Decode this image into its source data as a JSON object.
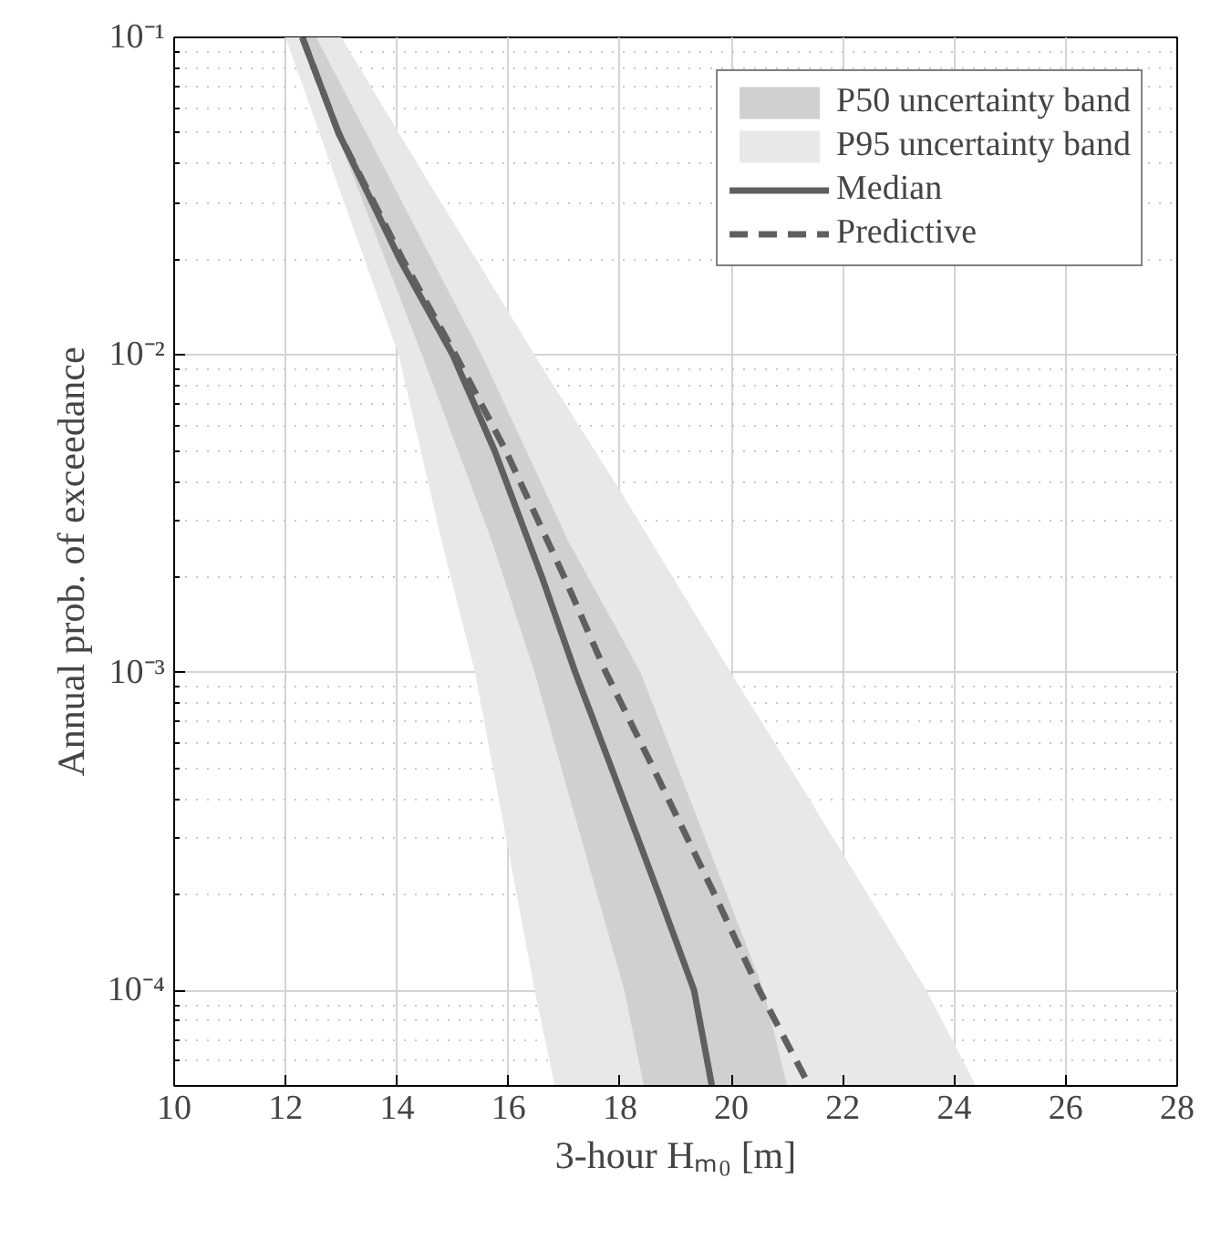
{
  "chart_data": {
    "type": "line",
    "xlabel": "3-hour Hₘ₀ [m]",
    "ylabel": "Annual prob. of exceedance",
    "log": "y",
    "xlim": [
      10,
      28
    ],
    "xticks": [
      10,
      12,
      14,
      16,
      18,
      20,
      22,
      24,
      26,
      28
    ],
    "ylim": [
      5e-05,
      0.1
    ],
    "yticks": [
      {
        "value": 0.0001,
        "label": "10⁻⁴"
      },
      {
        "value": 0.001,
        "label": "10⁻³"
      },
      {
        "value": 0.01,
        "label": "10⁻²"
      },
      {
        "value": 0.1,
        "label": "10⁻¹"
      }
    ],
    "grid": true,
    "legend": "top right",
    "series": [
      {
        "name": "P50 uncertainty band",
        "type": "area",
        "color": "#d0d0d0",
        "x": [
          12.25,
          12.55,
          13.5,
          14.45,
          15.52,
          15.7,
          16.47,
          17.07,
          18.08,
          18.37,
          18.43,
          19.5,
          20.58,
          21.0
        ],
        "values": [
          null,
          null,
          null,
          null,
          null,
          null,
          null,
          null,
          null,
          null,
          null,
          null,
          null,
          null
        ],
        "lower": [
          0.1,
          0.073,
          0.027,
          0.01,
          0.00316,
          0.0026,
          0.001,
          0.00042,
          0.0001,
          5.6e-05,
          5e-05,
          5e-05,
          5e-05,
          5e-05
        ],
        "upper": [
          0.1,
          0.1,
          0.0479,
          0.0229,
          0.01,
          0.00855,
          0.00438,
          0.0026,
          0.00124,
          0.001,
          0.00094,
          0.00031,
          0.0001,
          5e-05
        ]
      },
      {
        "name": "P95 uncertainty band",
        "type": "area",
        "color": "#e8e8e8",
        "x": [
          12.0,
          13.0,
          14.03,
          14.8,
          15.4,
          16.47,
          16.83,
          18.0,
          19.99,
          21.0,
          23.5,
          24.39
        ],
        "values": [
          null,
          null,
          null,
          null,
          null,
          null,
          null,
          null,
          null,
          null,
          null,
          null
        ],
        "lower": [
          0.1,
          0.032,
          0.01,
          0.0026,
          0.001,
          0.0001,
          5e-05,
          5e-05,
          5e-05,
          5e-05,
          5e-05,
          5e-05
        ],
        "upper": [
          0.1,
          0.1,
          0.05,
          0.03,
          0.0203,
          0.01,
          0.0079,
          0.00375,
          0.001,
          0.00052,
          0.0001,
          5e-05
        ]
      },
      {
        "name": "Median",
        "line_style": "solid",
        "color": "#5f5f5f",
        "x": [
          12.3,
          12.95,
          14.05,
          15.0,
          15.75,
          16.6,
          17.2,
          17.85,
          18.7,
          19.33,
          19.65
        ],
        "values": [
          0.1,
          0.05,
          0.02,
          0.01,
          0.005,
          0.002,
          0.001,
          0.0005,
          0.0002,
          0.0001,
          5e-05
        ]
      },
      {
        "name": "Predictive",
        "line_style": "dashed",
        "color": "#5f5f5f",
        "x": [
          12.3,
          12.95,
          14.1,
          15.05,
          15.95,
          17.0,
          17.75,
          18.6,
          19.7,
          20.5,
          21.4
        ],
        "values": [
          0.1,
          0.05,
          0.02,
          0.01,
          0.005,
          0.002,
          0.001,
          0.0005,
          0.0002,
          0.0001,
          5e-05
        ]
      }
    ]
  }
}
